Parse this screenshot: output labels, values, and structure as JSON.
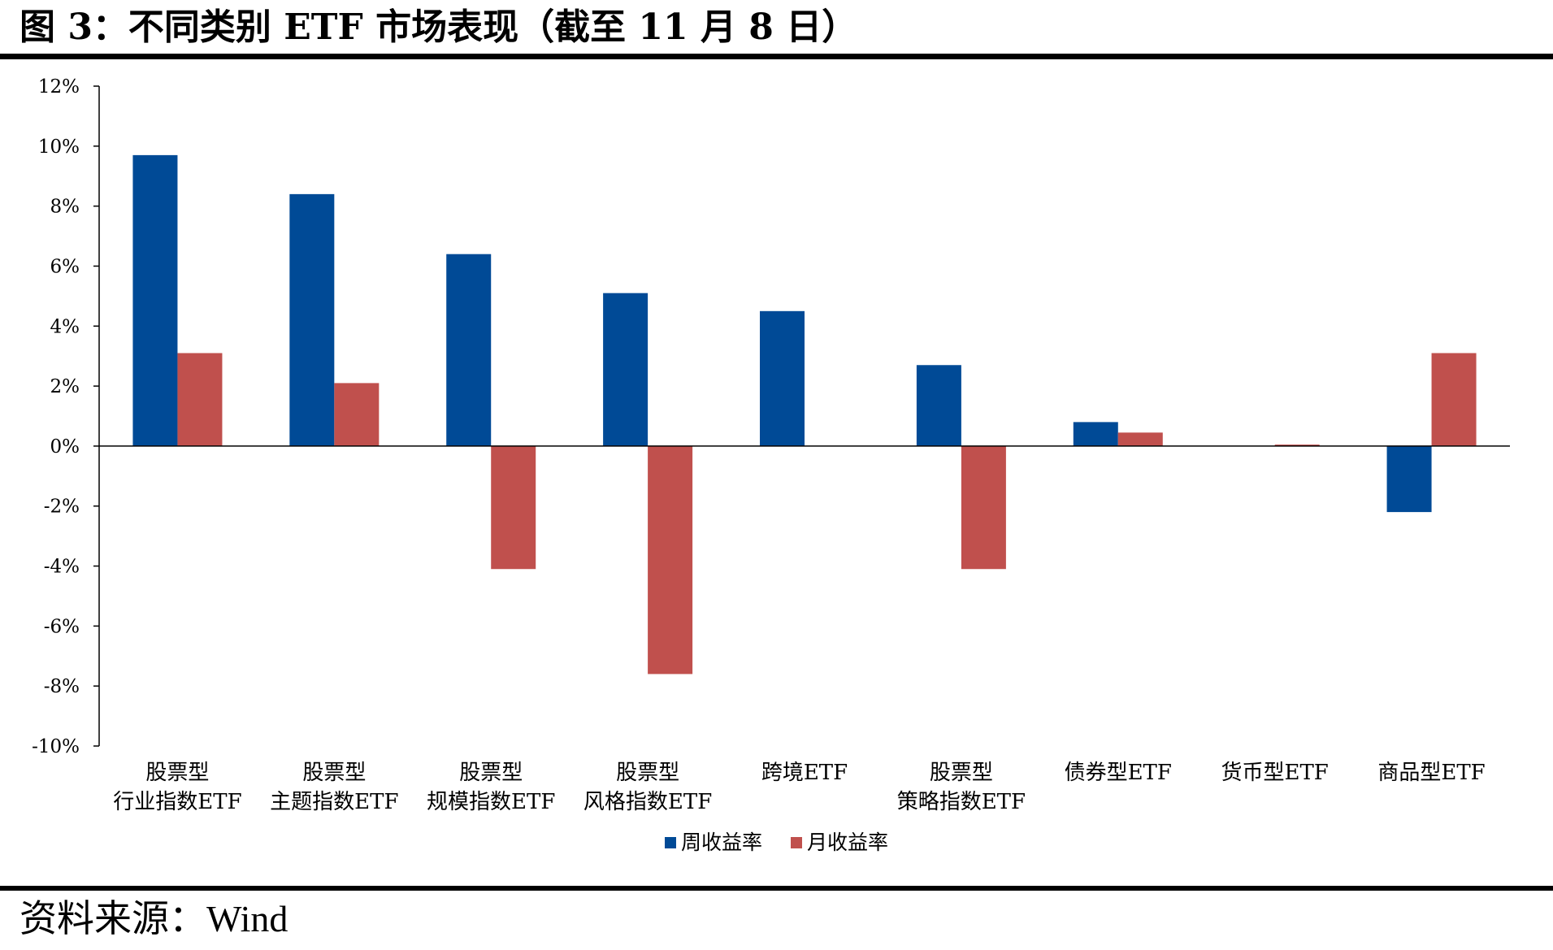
{
  "caption": "图 3：不同类别 ETF 市场表现（截至 11 月 8 日）",
  "source": {
    "label": "资料来源：",
    "value": "Wind"
  },
  "chart_data": {
    "type": "bar",
    "title": "",
    "xlabel": "",
    "ylabel": "",
    "ylim": [
      -10,
      12
    ],
    "yticks": [
      "12%",
      "10%",
      "8%",
      "6%",
      "4%",
      "2%",
      "0%",
      "-2%",
      "-4%",
      "-6%",
      "-8%",
      "-10%"
    ],
    "ytick_values": [
      12,
      10,
      8,
      6,
      4,
      2,
      0,
      -2,
      -4,
      -6,
      -8,
      -10
    ],
    "unit": "%",
    "grid": false,
    "legend_position": "bottom-center",
    "categories": [
      [
        "股票型",
        "行业指数ETF"
      ],
      [
        "股票型",
        "主题指数ETF"
      ],
      [
        "股票型",
        "规模指数ETF"
      ],
      [
        "股票型",
        "风格指数ETF"
      ],
      [
        "跨境ETF"
      ],
      [
        "股票型",
        "策略指数ETF"
      ],
      [
        "债券型ETF"
      ],
      [
        "货币型ETF"
      ],
      [
        "商品型ETF"
      ]
    ],
    "series": [
      {
        "name": "周收益率",
        "color": "#004a96",
        "values": [
          9.7,
          8.4,
          6.4,
          5.1,
          4.5,
          2.7,
          0.8,
          0.0,
          -2.2
        ]
      },
      {
        "name": "月收益率",
        "color": "#c0504d",
        "values": [
          3.1,
          2.1,
          -4.1,
          -7.6,
          0.0,
          -4.1,
          0.45,
          0.05,
          3.1
        ]
      }
    ]
  }
}
